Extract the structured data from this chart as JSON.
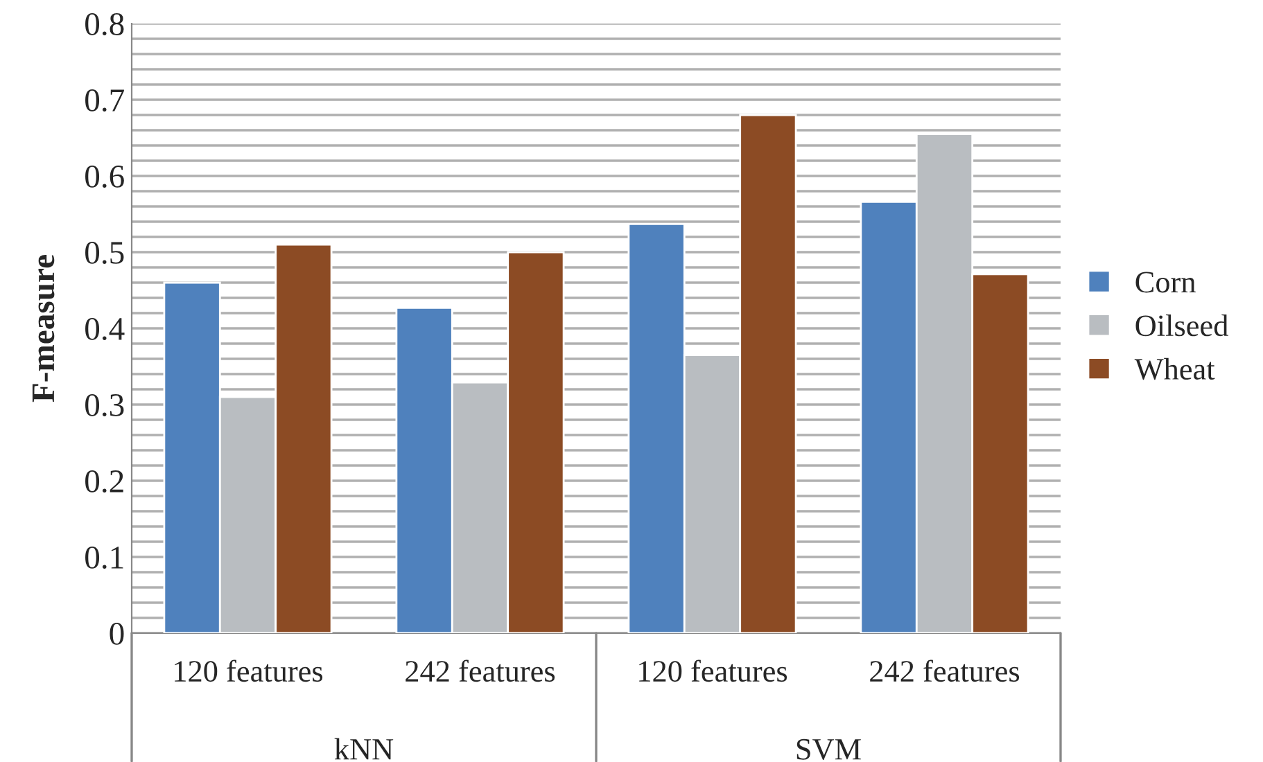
{
  "chart_data": {
    "type": "bar",
    "ylabel": "F-measure",
    "categories": [
      "120 features",
      "242 features",
      "120 features",
      "242 features"
    ],
    "series": [
      {
        "name": "Corn",
        "color": "#4f81bd",
        "values": [
          0.46,
          0.427,
          0.537,
          0.566
        ]
      },
      {
        "name": "Oilseed",
        "color": "#b9bdc1",
        "values": [
          0.31,
          0.329,
          0.365,
          0.655
        ]
      },
      {
        "name": "Wheat",
        "color": "#8c4b24",
        "values": [
          0.51,
          0.5,
          0.68,
          0.471
        ]
      }
    ],
    "annotations": [
      "kNN",
      "SVM"
    ],
    "ylim": [
      0,
      0.8
    ],
    "yticks": [
      0,
      {
        "value": 0.02,
        "label": null
      },
      {
        "value": 0.04,
        "label": null
      },
      {
        "value": 0.06,
        "label": null
      },
      {
        "value": 0.08,
        "label": null
      },
      0.1,
      {
        "value": 0.12,
        "label": null
      },
      {
        "value": 0.14,
        "label": null
      },
      {
        "value": 0.16,
        "label": null
      },
      {
        "value": 0.18,
        "label": null
      },
      0.2,
      {
        "value": 0.22,
        "label": null
      },
      {
        "value": 0.24,
        "label": null
      },
      {
        "value": 0.26,
        "label": null
      },
      {
        "value": 0.28,
        "label": null
      },
      0.3,
      {
        "value": 0.32,
        "label": null
      },
      {
        "value": 0.34,
        "label": null
      },
      {
        "value": 0.36,
        "label": null
      },
      {
        "value": 0.38,
        "label": null
      },
      0.4,
      {
        "value": 0.42,
        "label": null
      },
      {
        "value": 0.44,
        "label": null
      },
      {
        "value": 0.46,
        "label": null
      },
      {
        "value": 0.48,
        "label": null
      },
      0.5,
      {
        "value": 0.52,
        "label": null
      },
      {
        "value": 0.54,
        "label": null
      },
      {
        "value": 0.56,
        "label": null
      },
      {
        "value": 0.58,
        "label": null
      },
      0.6,
      {
        "value": 0.62,
        "label": null
      },
      {
        "value": 0.64,
        "label": null
      },
      {
        "value": 0.66,
        "label": null
      },
      {
        "value": 0.68,
        "label": null
      },
      0.7,
      {
        "value": 0.72,
        "label": null
      },
      {
        "value": 0.74,
        "label": null
      },
      {
        "value": 0.76,
        "label": null
      },
      {
        "value": 0.78,
        "label": null
      },
      0.8
    ],
    "grid": "y",
    "legend": "right"
  }
}
